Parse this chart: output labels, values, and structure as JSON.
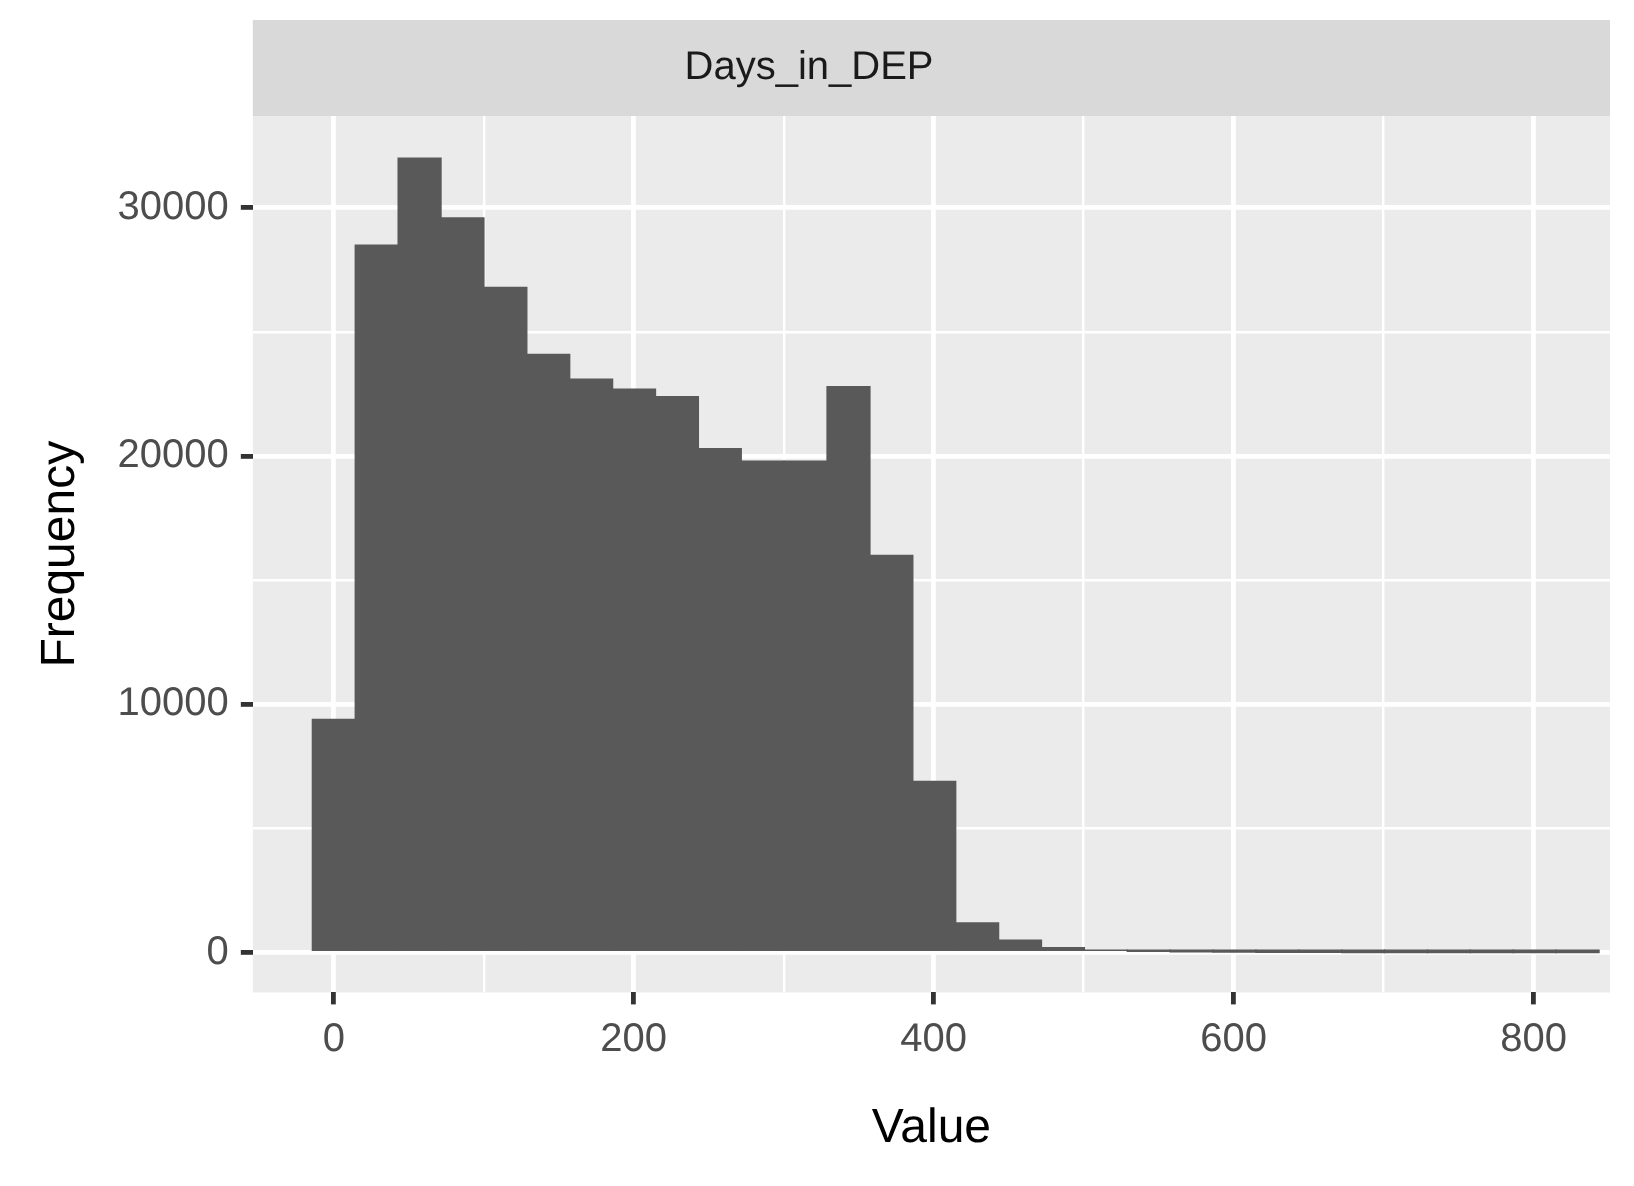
{
  "chart_data": {
    "type": "histogram",
    "title": "Days_in_DEP",
    "xlabel": "Value",
    "ylabel": "Frequency",
    "bins": [
      -14.3,
      14.3,
      42.9,
      71.5,
      100.1,
      128.7,
      157.3,
      185.9,
      214.5,
      243.1,
      271.7,
      300.3,
      328.9,
      357.5,
      386.1,
      414.7,
      443.3,
      471.9,
      500.5,
      529.1,
      557.7,
      586.3,
      614.9,
      643.5,
      672.1,
      700.7,
      729.3,
      757.9,
      786.5,
      815.1,
      843.7
    ],
    "values": [
      9400,
      28500,
      32000,
      29600,
      26800,
      24100,
      23100,
      22700,
      22400,
      20300,
      19800,
      19800,
      22800,
      16000,
      6900,
      1200,
      500,
      200,
      100,
      50,
      30,
      20,
      10,
      10,
      5,
      5,
      5,
      5,
      5,
      5
    ],
    "color": "#595959",
    "xlim": [
      -54,
      851
    ],
    "xticks": [
      0,
      {
        "value": 100,
        "label": null
      },
      200,
      {
        "value": 300,
        "label": null
      },
      400,
      {
        "value": 500,
        "label": null
      },
      600,
      {
        "value": 700,
        "label": null
      },
      800
    ],
    "ylim": [
      -1600,
      33700
    ],
    "yticks": [
      0,
      {
        "value": 5000,
        "label": null
      },
      10000,
      {
        "value": 15000,
        "label": null
      },
      20000,
      {
        "value": 25000,
        "label": null
      },
      30000
    ],
    "grid": true
  }
}
